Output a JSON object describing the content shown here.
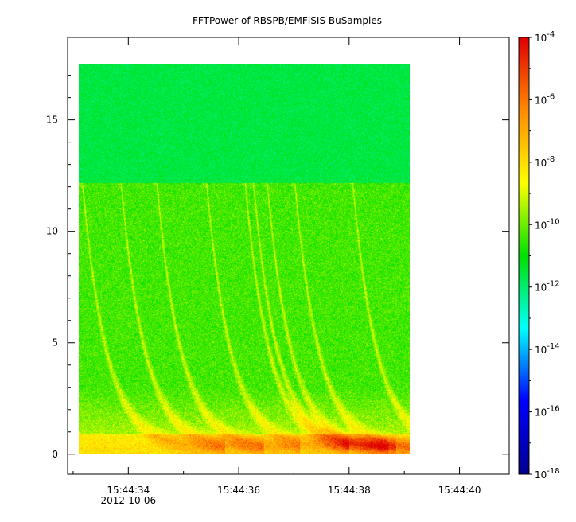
{
  "chart_data": {
    "type": "heatmap",
    "title": "FFTPower of RBSPB/EMFISIS  BuSamples",
    "xlabel": "",
    "ylabel": "",
    "x_ticks": [
      {
        "label": "15:44:34",
        "sublabel": "2012-10-06"
      },
      {
        "label": "15:44:36",
        "sublabel": ""
      },
      {
        "label": "15:44:38",
        "sublabel": ""
      },
      {
        "label": "15:44:40",
        "sublabel": ""
      }
    ],
    "x_range_seconds": [
      32.9,
      40.9
    ],
    "x_major_seconds": [
      34,
      36,
      38,
      40
    ],
    "x_minor_seconds": [
      33,
      35,
      37,
      39
    ],
    "y_ticks": [
      0,
      5,
      10,
      15
    ],
    "ylim": [
      -0.9,
      18.7
    ],
    "data_extent": {
      "x_seconds": [
        33.1,
        39.1
      ],
      "y": [
        0,
        17.5
      ]
    },
    "colorbar": {
      "scale": "log",
      "range_exponent": [
        -18,
        -4
      ],
      "ticks": [
        {
          "base": "10",
          "exp": "-4",
          "value_exp": -4
        },
        {
          "base": "10",
          "exp": "-6",
          "value_exp": -6
        },
        {
          "base": "10",
          "exp": "-8",
          "value_exp": -8
        },
        {
          "base": "10",
          "exp": "-10",
          "value_exp": -10
        },
        {
          "base": "10",
          "exp": "-12",
          "value_exp": -12
        },
        {
          "base": "10",
          "exp": "-14",
          "value_exp": -14
        },
        {
          "base": "10",
          "exp": "-16",
          "value_exp": -16
        },
        {
          "base": "10",
          "exp": "-18",
          "value_exp": -18
        }
      ],
      "colors": [
        "#00008f",
        "#0000ff",
        "#00ffff",
        "#00e000",
        "#ffff00",
        "#ff8c00",
        "#e00000"
      ]
    },
    "features": {
      "cutoff_y": 12.2,
      "chorus_onsets_seconds": [
        33.15,
        33.85,
        34.5,
        35.4,
        36.1,
        36.25,
        36.5,
        37.0,
        38.05
      ]
    }
  }
}
